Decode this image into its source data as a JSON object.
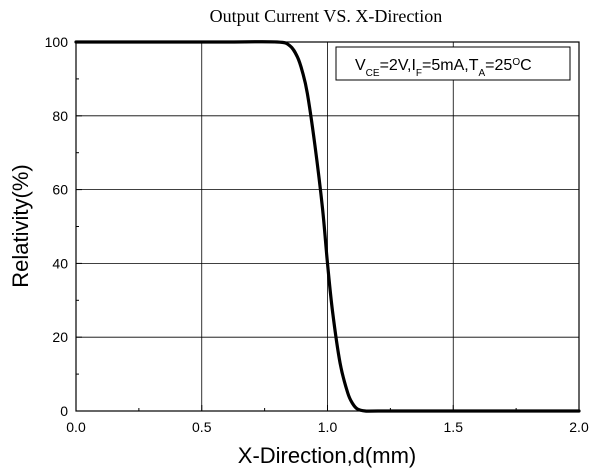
{
  "chart_data": {
    "type": "line",
    "title": "Output Current VS. X-Direction",
    "xlabel": "X-Direction,d(mm)",
    "ylabel": "Relativity(%)",
    "xlim": [
      0.0,
      2.0
    ],
    "ylim": [
      0,
      100
    ],
    "x_ticks": [
      "0.0",
      "0.5",
      "1.0",
      "1.5",
      "2.0"
    ],
    "y_ticks": [
      "0",
      "20",
      "40",
      "60",
      "80",
      "100"
    ],
    "grid": true,
    "annotation": {
      "parts": [
        {
          "text": "V",
          "baseline": "normal"
        },
        {
          "text": "CE",
          "baseline": "sub"
        },
        {
          "text": "=2V,I",
          "baseline": "normal"
        },
        {
          "text": "F",
          "baseline": "sub"
        },
        {
          "text": "=5mA,T",
          "baseline": "normal"
        },
        {
          "text": "A",
          "baseline": "sub"
        },
        {
          "text": "=25",
          "baseline": "normal"
        },
        {
          "text": "O",
          "baseline": "super"
        },
        {
          "text": "C",
          "baseline": "normal"
        }
      ],
      "position": "top-right"
    },
    "series": [
      {
        "color": "#000000",
        "x": [
          0.0,
          0.2,
          0.4,
          0.6,
          0.8,
          0.85,
          0.88,
          0.9,
          0.92,
          0.95,
          0.98,
          1.0,
          1.02,
          1.05,
          1.08,
          1.1,
          1.12,
          1.15,
          1.2,
          1.5,
          2.0
        ],
        "y": [
          100,
          100,
          100,
          100,
          100,
          99,
          96,
          92,
          86,
          72,
          55,
          40,
          27,
          13,
          5,
          2,
          0.5,
          0,
          0,
          0,
          0
        ]
      }
    ]
  }
}
